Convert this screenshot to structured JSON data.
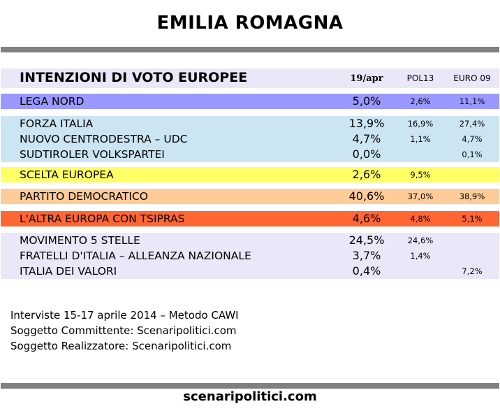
{
  "title": "EMILIA ROMAGNA",
  "chart_data": {
    "type": "table",
    "title": "INTENZIONI DI VOTO EUROPEE",
    "columns": [
      "19/apr",
      "POL13",
      "EURO 09"
    ],
    "groups": [
      {
        "color": "#9999ff",
        "rows": [
          {
            "party": "LEGA NORD",
            "value": "5,0%",
            "pol13": "2,6%",
            "euro09": "11,1%"
          }
        ]
      },
      {
        "color": "#cce5f3",
        "rows": [
          {
            "party": "FORZA ITALIA",
            "value": "13,9%",
            "pol13": "16,9%",
            "euro09": "27,4%"
          },
          {
            "party": "NUOVO CENTRODESTRA – UDC",
            "value": "4,7%",
            "pol13": "1,1%",
            "euro09": "4,7%"
          },
          {
            "party": "SUDTIROLER VOLKSPARTEI",
            "value": "0,0%",
            "pol13": "",
            "euro09": "0,1%"
          }
        ]
      },
      {
        "color": "#ffff66",
        "rows": [
          {
            "party": "SCELTA EUROPEA",
            "value": "2,6%",
            "pol13": "9,5%",
            "euro09": ""
          }
        ]
      },
      {
        "color": "#ffcc99",
        "rows": [
          {
            "party": "PARTITO DEMOCRATICO",
            "value": "40,6%",
            "pol13": "37,0%",
            "euro09": "38,9%"
          }
        ]
      },
      {
        "color": "#ff6633",
        "rows": [
          {
            "party": "L'ALTRA EUROPA CON TSIPRAS",
            "value": "4,6%",
            "pol13": "4,8%",
            "euro09": "5,1%"
          }
        ]
      },
      {
        "color": "#e9e7f8",
        "rows": [
          {
            "party": "MOVIMENTO 5 STELLE",
            "value": "24,5%",
            "pol13": "24,6%",
            "euro09": ""
          },
          {
            "party": "FRATELLI D'ITALIA – ALLEANZA NAZIONALE",
            "value": "3,7%",
            "pol13": "1,4%",
            "euro09": ""
          },
          {
            "party": "ITALIA DEI VALORI",
            "value": "0,4%",
            "pol13": "",
            "euro09": "7,2%"
          }
        ]
      }
    ]
  },
  "info": {
    "line1": "Interviste 15-17 aprile 2014 – Metodo CAWI",
    "line2": "Soggetto Committente: Scenaripolitici.com",
    "line3": "Soggetto Realizzatore: Scenaripolitici.com"
  },
  "footer": "scenaripolitici.com"
}
